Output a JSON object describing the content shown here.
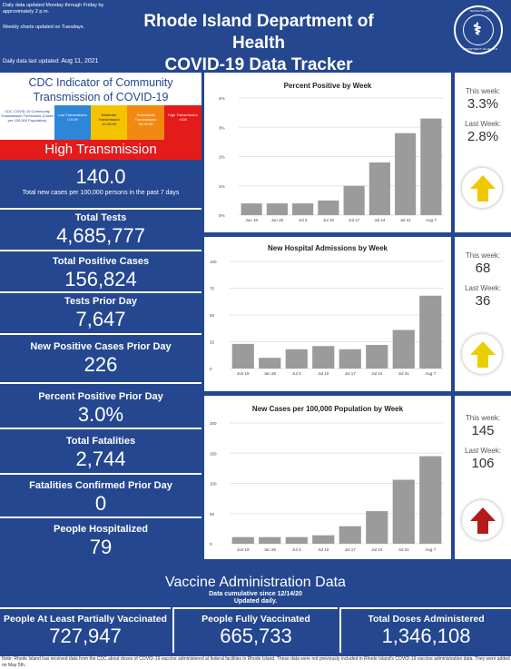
{
  "header": {
    "note1": "Daily data updated Monday through Friday by approximately 2 p.m.",
    "note2": "Weekly charts updated on Tuesdays.",
    "updated_label": "Daily data last updated:",
    "updated_date": "Aug 11, 2021",
    "title_line1": "Rhode Island Department of Health",
    "title_line2": "COVID-19 Data Tracker",
    "seal_top": "RHODE ISLAND",
    "seal_bottom": "DEPARTMENT OF HEALTH"
  },
  "cdc": {
    "title_line1": "CDC Indicator of Community",
    "title_line2": "Transmission of COVID-19",
    "legend_desc": "CDC COVID-19 Community Transmission Thresholds (Cases per 100,000 Population)",
    "legend": [
      {
        "label": "Low Transmission",
        "range": "0-9.99"
      },
      {
        "label": "Moderate Transmission",
        "range": "10-49.99"
      },
      {
        "label": "Substantial Transmission",
        "range": "50-99.99"
      },
      {
        "label": "High Transmission",
        "range": ">100"
      }
    ],
    "level": "High Transmission",
    "value": "140.0",
    "value_sub": "Total new cases per 100,000 persons in the past 7 days"
  },
  "stats": [
    {
      "label": "Total Tests",
      "value": "4,685,777"
    },
    {
      "label": "Total Positive Cases",
      "value": "156,824"
    },
    {
      "label": "Tests Prior Day",
      "value": "7,647"
    },
    {
      "label": "New Positive Cases Prior Day",
      "value": "226"
    },
    {
      "label": "Percent Positive Prior Day",
      "value": "3.0%"
    },
    {
      "label": "Total Fatalities",
      "value": "2,744"
    },
    {
      "label": "Fatalities Confirmed Prior Day",
      "value": "0"
    },
    {
      "label": "People Hospitalized",
      "value": "79"
    }
  ],
  "side": [
    {
      "this_week_label": "This week:",
      "this_week": "3.3%",
      "last_week_label": "Last Week:",
      "last_week": "2.8%",
      "arrow_color": "#f0c800"
    },
    {
      "this_week_label": "This week:",
      "this_week": "68",
      "last_week_label": "Last Week:",
      "last_week": "36",
      "arrow_color": "#e8d000"
    },
    {
      "this_week_label": "This week:",
      "this_week": "145",
      "last_week_label": "Last Week:",
      "last_week": "106",
      "arrow_color": "#b51a1a"
    }
  ],
  "chart_data": [
    {
      "type": "bar",
      "title": "Percent Positive by Week",
      "categories": [
        "Jun 19",
        "Jun 26",
        "Jul 3",
        "Jul 10",
        "Jul 17",
        "Jul 24",
        "Jul 31",
        "Aug 7"
      ],
      "values": [
        0.4,
        0.4,
        0.4,
        0.5,
        1.0,
        1.8,
        2.8,
        3.3
      ],
      "ylim": [
        0,
        4
      ],
      "yticks": [
        0,
        1,
        2,
        3,
        4
      ],
      "ytick_labels": [
        "0%",
        "1%",
        "2%",
        "3%",
        "4%"
      ],
      "color": "#9b9b9b"
    },
    {
      "type": "bar",
      "title": "New Hospital Admissions by Week",
      "categories": [
        "Jun 19",
        "Jun 26",
        "Jul 3",
        "Jul 10",
        "Jul 17",
        "Jul 24",
        "Jul 31",
        "Aug 7"
      ],
      "values": [
        23,
        10,
        18,
        21,
        18,
        22,
        36,
        68
      ],
      "ylim": [
        0,
        100
      ],
      "yticks": [
        0,
        25,
        50,
        75,
        100
      ],
      "ytick_labels": [
        "0",
        "25",
        "50",
        "75",
        "100"
      ],
      "color": "#9b9b9b"
    },
    {
      "type": "bar",
      "title": "New Cases per 100,000 Population by Week",
      "categories": [
        "Jun 19",
        "Jun 26",
        "Jul 3",
        "Jul 10",
        "Jul 17",
        "Jul 24",
        "Jul 31",
        "Aug 7"
      ],
      "values": [
        11,
        11,
        11,
        14,
        29,
        54,
        106,
        145
      ],
      "ylim": [
        0,
        200
      ],
      "yticks": [
        0,
        50,
        100,
        150,
        200
      ],
      "ytick_labels": [
        "0",
        "50",
        "100",
        "150",
        "200"
      ],
      "color": "#9b9b9b"
    }
  ],
  "vaccine": {
    "title": "Vaccine Administration Data",
    "sub1": "Data cumulative since 12/14/20",
    "sub2": "Updated daily.",
    "items": [
      {
        "label": "People At Least Partially Vaccinated",
        "value": "727,947"
      },
      {
        "label": "People Fully Vaccinated",
        "value": "665,733"
      },
      {
        "label": "Total Doses Administered",
        "value": "1,346,108"
      }
    ],
    "note": "Note: Rhode Island has received data from the CDC about doses of COVID-19 vaccine administered at federal facilities in Rhode Island. These data were not previously included in Rhode Island's COVID-19 vaccine administration data. They were added on May 5th."
  }
}
